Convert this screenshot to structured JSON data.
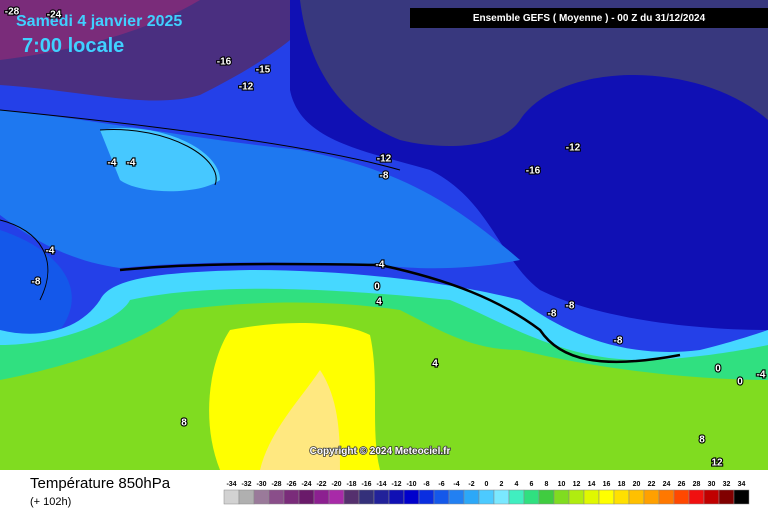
{
  "header": {
    "date": "Samedi 4 janvier 2025",
    "time": "7:00 locale",
    "run": "Ensemble GEFS  ( Moyenne )  -  00 Z du 31/12/2024"
  },
  "copyright": "Copyright © 2024 Meteociel.fr",
  "footer": {
    "title": "Température 850hPa",
    "lead": "(+ 102h)"
  },
  "legend": {
    "labels": [
      "-34",
      "-32",
      "-30",
      "-28",
      "-26",
      "-24",
      "-22",
      "-20",
      "-18",
      "-16",
      "-14",
      "-12",
      "-10",
      "-8",
      "-6",
      "-4",
      "-2",
      "0",
      "2",
      "4",
      "6",
      "8",
      "10",
      "12",
      "14",
      "16",
      "18",
      "20",
      "22",
      "24",
      "26",
      "28",
      "30",
      "32",
      "34"
    ],
    "colors": [
      "#d2d2d2",
      "#b0b0b0",
      "#9a7a9a",
      "#8a4e8a",
      "#7a2c7a",
      "#6a1a6a",
      "#8c2090",
      "#a82aa8",
      "#55306e",
      "#34307a",
      "#22229a",
      "#1010b4",
      "#0000cc",
      "#0a2ee0",
      "#1458ea",
      "#2280f2",
      "#2ca8f8",
      "#4ccaff",
      "#7ae8ff",
      "#40eec0",
      "#30e080",
      "#40cc40",
      "#80dc20",
      "#b0ec10",
      "#e0f800",
      "#ffff00",
      "#ffe000",
      "#ffc000",
      "#ffa000",
      "#ff7800",
      "#ff4800",
      "#f01010",
      "#c00000",
      "#800000",
      "#000000"
    ]
  },
  "contour_labels": [
    "-28",
    "-24",
    "-16",
    "-15",
    "-12",
    "-4",
    "-4",
    "-12",
    "-8",
    "-16",
    "-12",
    "-4",
    "-8",
    "-4",
    "0",
    "4",
    "-8",
    "-8",
    "-8",
    "4",
    "0",
    "0",
    "-4",
    "8",
    "8",
    "12"
  ]
}
